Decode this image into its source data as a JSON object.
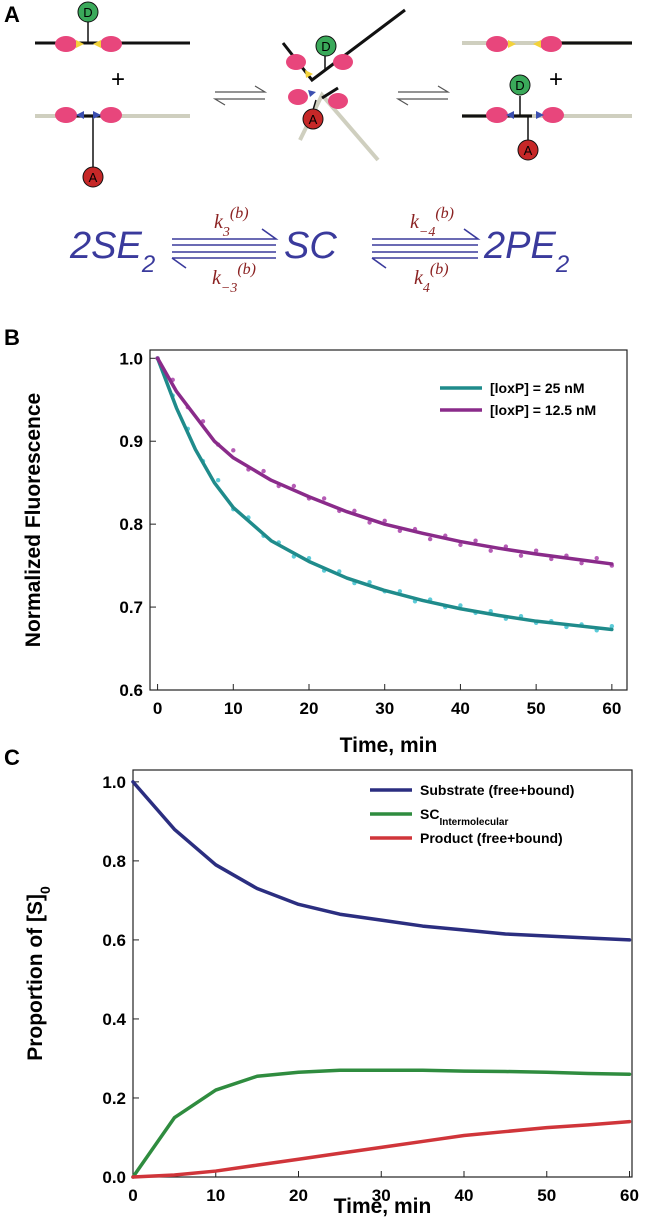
{
  "panels": {
    "a": "A",
    "b": "B",
    "c": "C"
  },
  "diagram": {
    "labels": [
      "D",
      "A",
      "D",
      "A",
      "D",
      "A"
    ],
    "plus": [
      "+",
      "+"
    ]
  },
  "equation": {
    "left": {
      "text": "2SE",
      "sub": "2"
    },
    "middle": "SC",
    "right": {
      "text": "2PE",
      "sub": "2"
    },
    "rates": [
      {
        "symbol": "k",
        "sub": "3",
        "sup": "(b)"
      },
      {
        "symbol": "k",
        "sub": "−3",
        "sup": "(b)"
      },
      {
        "symbol": "k",
        "sub": "−4",
        "sup": "(b)"
      },
      {
        "symbol": "k",
        "sub": "4",
        "sup": "(b)"
      }
    ]
  },
  "chart_data": [
    {
      "type": "line",
      "xlabel": "Time, min",
      "ylabel": "Normalized Fluorescence",
      "xlim": [
        -1,
        62
      ],
      "ylim": [
        0.6,
        1.01
      ],
      "xticks": [
        0,
        10,
        20,
        30,
        40,
        50,
        60
      ],
      "yticks": [
        0.6,
        0.7,
        0.8,
        0.9,
        {
          "value": 1,
          "label": "1.0"
        }
      ],
      "legend": "upper right",
      "series": [
        {
          "color": "#5ccbd8",
          "mode": "markers",
          "x": [
            0,
            2,
            4,
            6,
            8,
            10,
            12,
            14,
            16,
            18,
            20,
            22,
            24,
            26,
            28,
            30,
            32,
            34,
            36,
            38,
            40,
            42,
            44,
            46,
            48,
            50,
            52,
            54,
            56,
            58,
            60
          ],
          "values": [
            1.0,
            0.955,
            0.915,
            0.876,
            0.853,
            0.818,
            0.808,
            0.786,
            0.778,
            0.761,
            0.759,
            0.744,
            0.743,
            0.729,
            0.73,
            0.719,
            0.719,
            0.707,
            0.709,
            0.7,
            0.702,
            0.693,
            0.695,
            0.686,
            0.689,
            0.681,
            0.683,
            0.676,
            0.679,
            0.672,
            0.677
          ]
        },
        {
          "color": "#b55cb5",
          "mode": "markers",
          "x": [
            0,
            2,
            4,
            6,
            8,
            10,
            12,
            14,
            16,
            18,
            20,
            22,
            24,
            26,
            28,
            30,
            32,
            34,
            36,
            38,
            40,
            42,
            44,
            46,
            48,
            50,
            52,
            54,
            56,
            58,
            60
          ],
          "values": [
            1.0,
            0.974,
            0.941,
            0.924,
            0.896,
            0.889,
            0.866,
            0.864,
            0.846,
            0.846,
            0.831,
            0.831,
            0.816,
            0.816,
            0.802,
            0.804,
            0.792,
            0.794,
            0.782,
            0.786,
            0.775,
            0.78,
            0.768,
            0.773,
            0.762,
            0.768,
            0.758,
            0.762,
            0.753,
            0.759,
            0.75
          ]
        },
        {
          "name": "[loxP] = 25 nM",
          "color": "#1f8b8b",
          "mode": "line",
          "x": [
            0,
            2.5,
            5,
            7.5,
            10,
            15,
            20,
            25,
            30,
            35,
            40,
            45,
            50,
            55,
            60
          ],
          "values": [
            1.0,
            0.94,
            0.89,
            0.85,
            0.82,
            0.78,
            0.755,
            0.735,
            0.72,
            0.708,
            0.698,
            0.69,
            0.683,
            0.678,
            0.673
          ]
        },
        {
          "name": "[loxP] = 12.5 nM",
          "color": "#8a2b8a",
          "mode": "line",
          "x": [
            0,
            2.5,
            5,
            7.5,
            10,
            15,
            20,
            25,
            30,
            35,
            40,
            45,
            50,
            55,
            60
          ],
          "values": [
            1.0,
            0.96,
            0.93,
            0.9,
            0.88,
            0.853,
            0.833,
            0.815,
            0.8,
            0.789,
            0.779,
            0.771,
            0.764,
            0.758,
            0.752
          ]
        }
      ]
    },
    {
      "type": "line",
      "xlabel": "Time, min",
      "ylabel": "Proportion of [S]",
      "ylabel_subscript": "0",
      "xlim": [
        0,
        60.3
      ],
      "ylim": [
        0,
        1.03
      ],
      "xticks": [
        0,
        10,
        20,
        30,
        40,
        50,
        60
      ],
      "yticks": [
        {
          "value": 0,
          "label": "0.0"
        },
        0.2,
        0.4,
        0.6,
        0.8,
        {
          "value": 1,
          "label": "1.0"
        }
      ],
      "legend": "upper right",
      "series": [
        {
          "name": "Substrate (free+bound)",
          "color": "#2b2e80",
          "mode": "line",
          "x": [
            0,
            5,
            10,
            15,
            20,
            25,
            30,
            35,
            40,
            45,
            50,
            55,
            60
          ],
          "values": [
            1.0,
            0.88,
            0.79,
            0.73,
            0.69,
            0.665,
            0.65,
            0.635,
            0.625,
            0.615,
            0.61,
            0.605,
            0.6
          ]
        },
        {
          "name": "SC",
          "name_subscript": "Intermolecular",
          "color": "#2f8c3f",
          "mode": "line",
          "x": [
            0,
            5,
            10,
            15,
            20,
            25,
            30,
            35,
            40,
            45,
            50,
            55,
            60
          ],
          "values": [
            0,
            0.15,
            0.22,
            0.255,
            0.265,
            0.27,
            0.27,
            0.27,
            0.268,
            0.267,
            0.265,
            0.262,
            0.26
          ]
        },
        {
          "name": "Product (free+bound)",
          "color": "#d0353a",
          "mode": "line",
          "x": [
            0,
            5,
            10,
            15,
            20,
            25,
            30,
            35,
            40,
            45,
            50,
            55,
            60
          ],
          "values": [
            0,
            0.005,
            0.015,
            0.03,
            0.045,
            0.06,
            0.075,
            0.09,
            0.105,
            0.115,
            0.125,
            0.132,
            0.14
          ]
        }
      ]
    }
  ]
}
